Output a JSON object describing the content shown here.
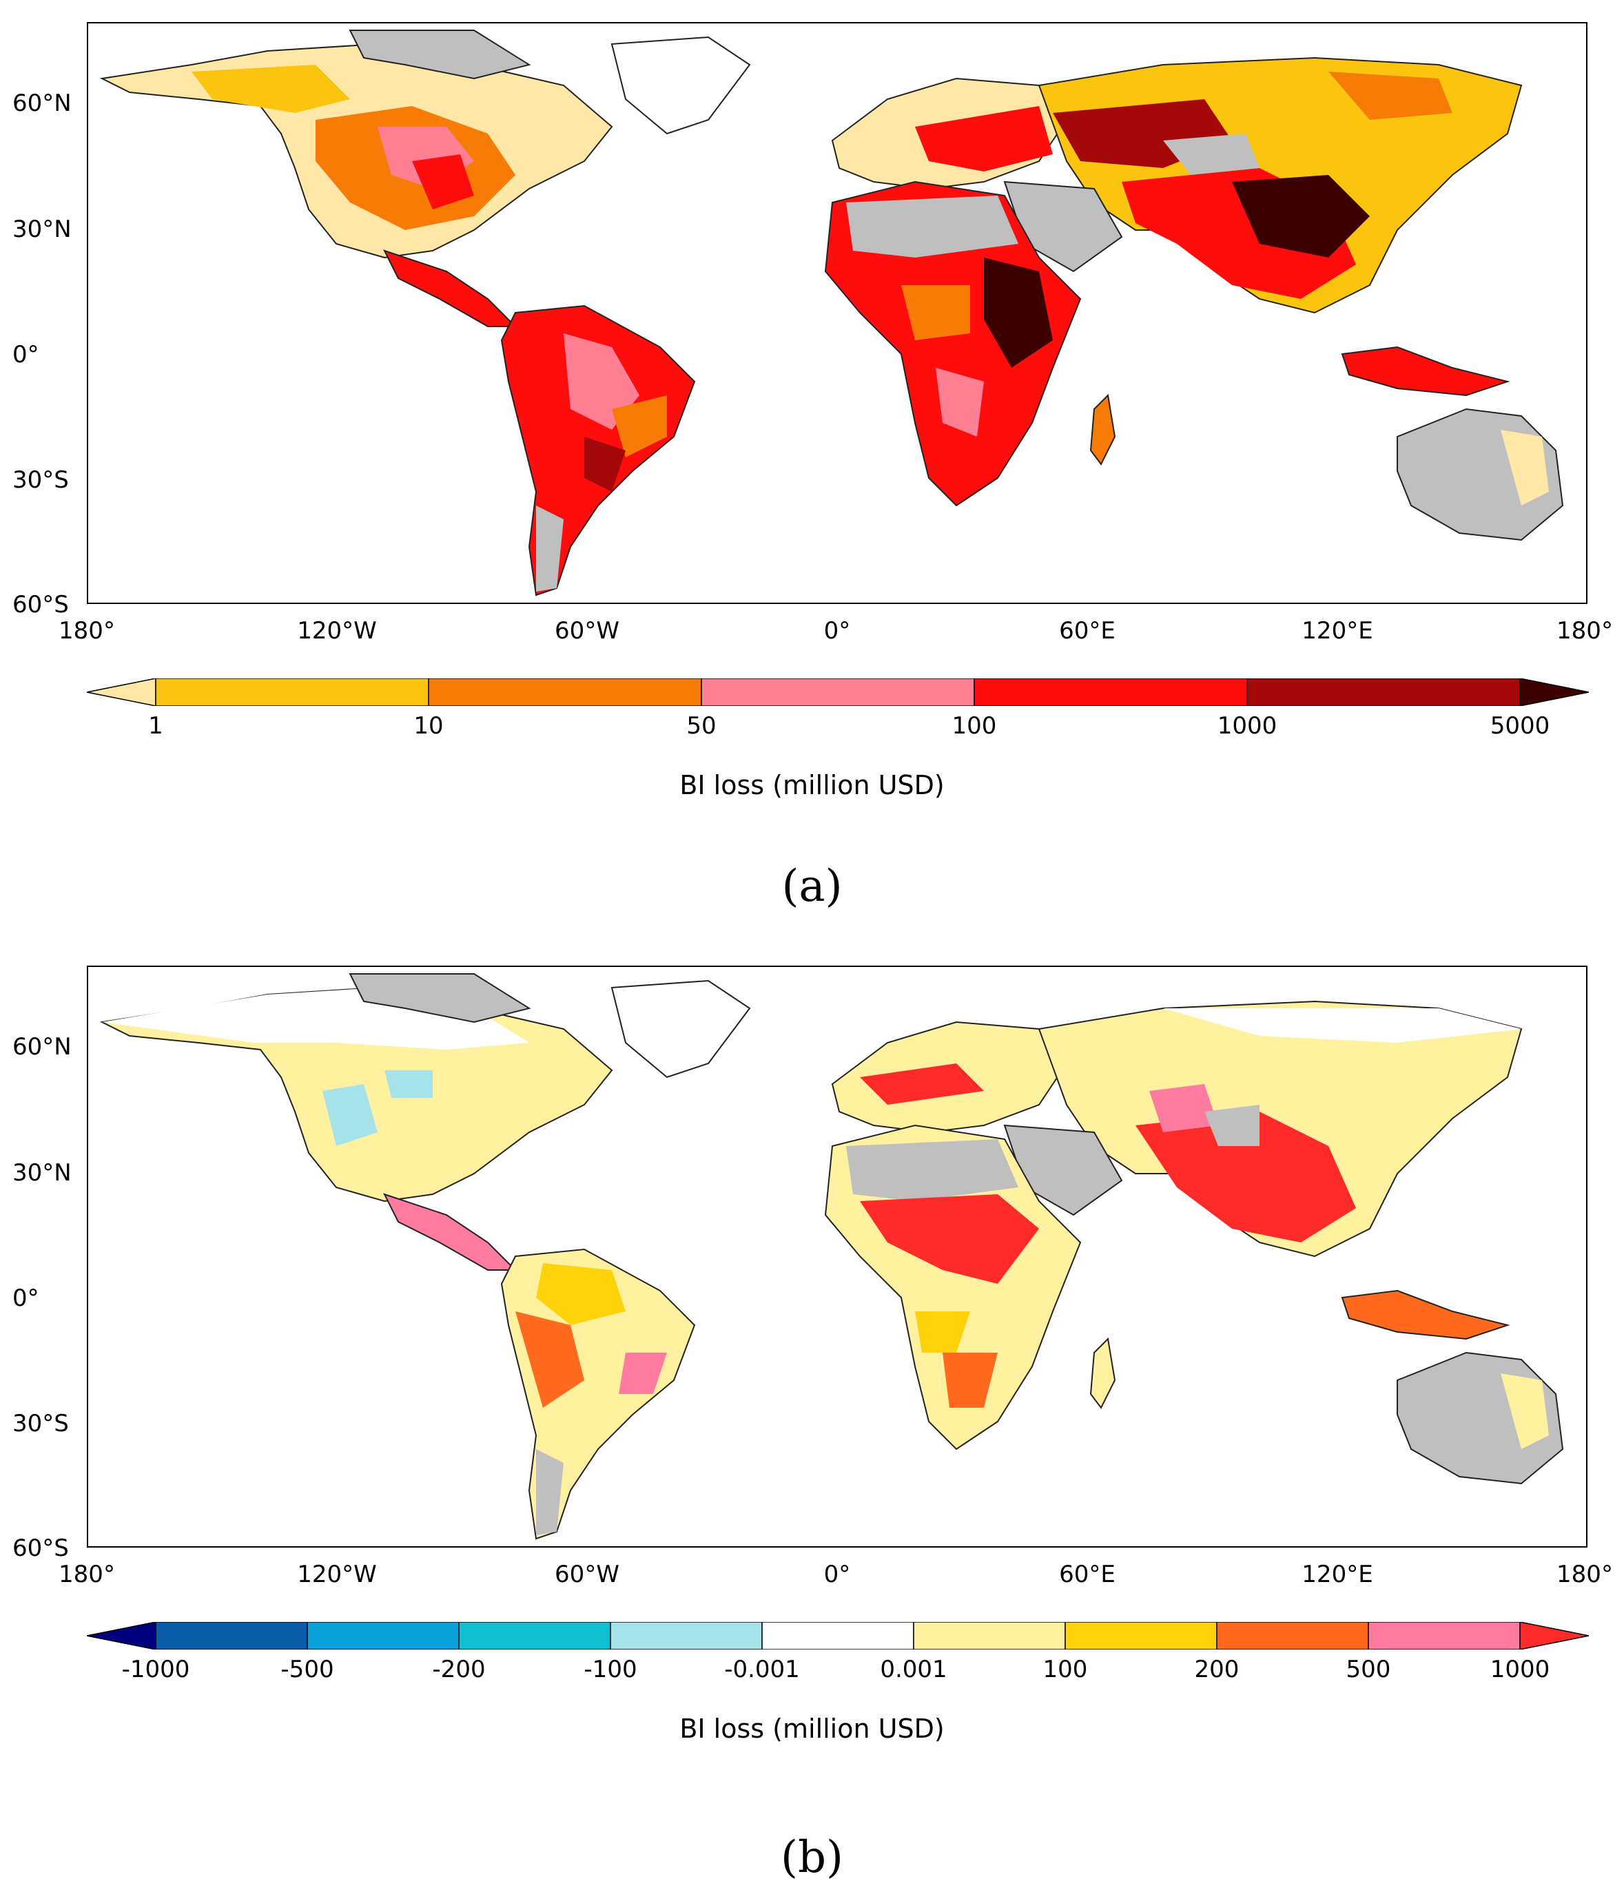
{
  "panels": [
    {
      "id": "a",
      "label": "(a)",
      "lat_ticks": [
        "60°N",
        "30°N",
        "0°",
        "30°S",
        "60°S"
      ],
      "lon_ticks": [
        "180°",
        "120°W",
        "60°W",
        "0°",
        "60°E",
        "120°E",
        "180°"
      ],
      "colorbar": {
        "title": "BI loss (million USD)",
        "labels": [
          "1",
          "10",
          "50",
          "100",
          "1000",
          "5000"
        ],
        "colors": [
          "#FFE7A8",
          "#FBC50F",
          "#F77B07",
          "#FF8095",
          "#FF0C0C",
          "#A40808",
          "#3D0000"
        ],
        "extend": "both"
      }
    },
    {
      "id": "b",
      "label": "(b)",
      "lat_ticks": [
        "60°N",
        "30°N",
        "0°",
        "30°S",
        "60°S"
      ],
      "lon_ticks": [
        "180°",
        "120°W",
        "60°W",
        "0°",
        "60°E",
        "120°E",
        "180°"
      ],
      "colorbar": {
        "title": "BI loss (million USD)",
        "labels": [
          "-1000",
          "-500",
          "-200",
          "-100",
          "-0.001",
          "0.001",
          "100",
          "200",
          "500",
          "1000"
        ],
        "colors": [
          "#00007F",
          "#0A5BA8",
          "#0AA0D8",
          "#10C0D0",
          "#A6E2EA",
          "#FFFFFF",
          "#FFF1A0",
          "#FFD20A",
          "#FF6A1E",
          "#FF7BA0",
          "#FF2A2A"
        ],
        "extend": "both"
      }
    }
  ],
  "map_colors": {
    "land_no_data": "#BFBFBF",
    "coast": "#222222"
  }
}
